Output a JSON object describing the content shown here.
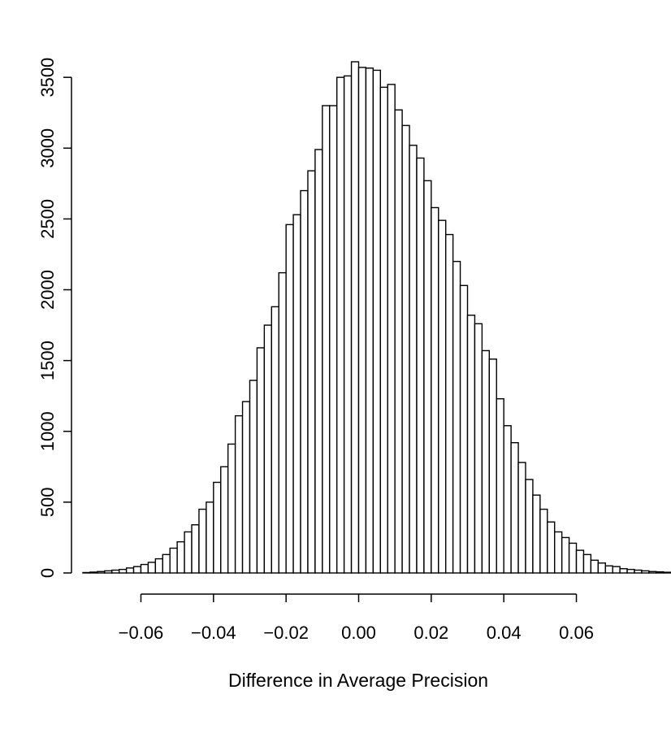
{
  "chart_data": {
    "type": "bar",
    "title": "",
    "xlabel": "Difference in Average Precision",
    "ylabel": "",
    "bin_start": -0.076,
    "bin_width": 0.002,
    "values": [
      3,
      6,
      10,
      15,
      20,
      25,
      35,
      45,
      60,
      75,
      100,
      130,
      175,
      220,
      290,
      340,
      450,
      500,
      640,
      750,
      910,
      1110,
      1210,
      1360,
      1590,
      1750,
      1880,
      2120,
      2460,
      2530,
      2700,
      2840,
      2990,
      3300,
      3300,
      3500,
      3510,
      3610,
      3570,
      3565,
      3550,
      3430,
      3450,
      3270,
      3160,
      3020,
      2930,
      2770,
      2580,
      2490,
      2390,
      2200,
      2030,
      1820,
      1760,
      1570,
      1510,
      1230,
      1040,
      920,
      780,
      660,
      550,
      450,
      360,
      290,
      250,
      210,
      160,
      130,
      90,
      70,
      50,
      45,
      30,
      25,
      20,
      15,
      10,
      8,
      5
    ],
    "xlim": [
      -0.076,
      0.076
    ],
    "ylim": [
      0,
      3610
    ],
    "x_ticks": [
      -0.06,
      -0.04,
      -0.02,
      0.0,
      0.02,
      0.04,
      0.06
    ],
    "x_tick_labels": [
      "−0.06",
      "−0.04",
      "−0.02",
      "0.00",
      "0.02",
      "0.04",
      "0.06"
    ],
    "y_ticks": [
      0,
      500,
      1000,
      1500,
      2000,
      2500,
      3000,
      3500
    ],
    "y_tick_labels": [
      "0",
      "500",
      "1000",
      "1500",
      "2000",
      "2500",
      "3000",
      "3500"
    ],
    "grid": false,
    "legend": "none",
    "bar_fill": "#ffffff",
    "bar_stroke": "#000000"
  }
}
